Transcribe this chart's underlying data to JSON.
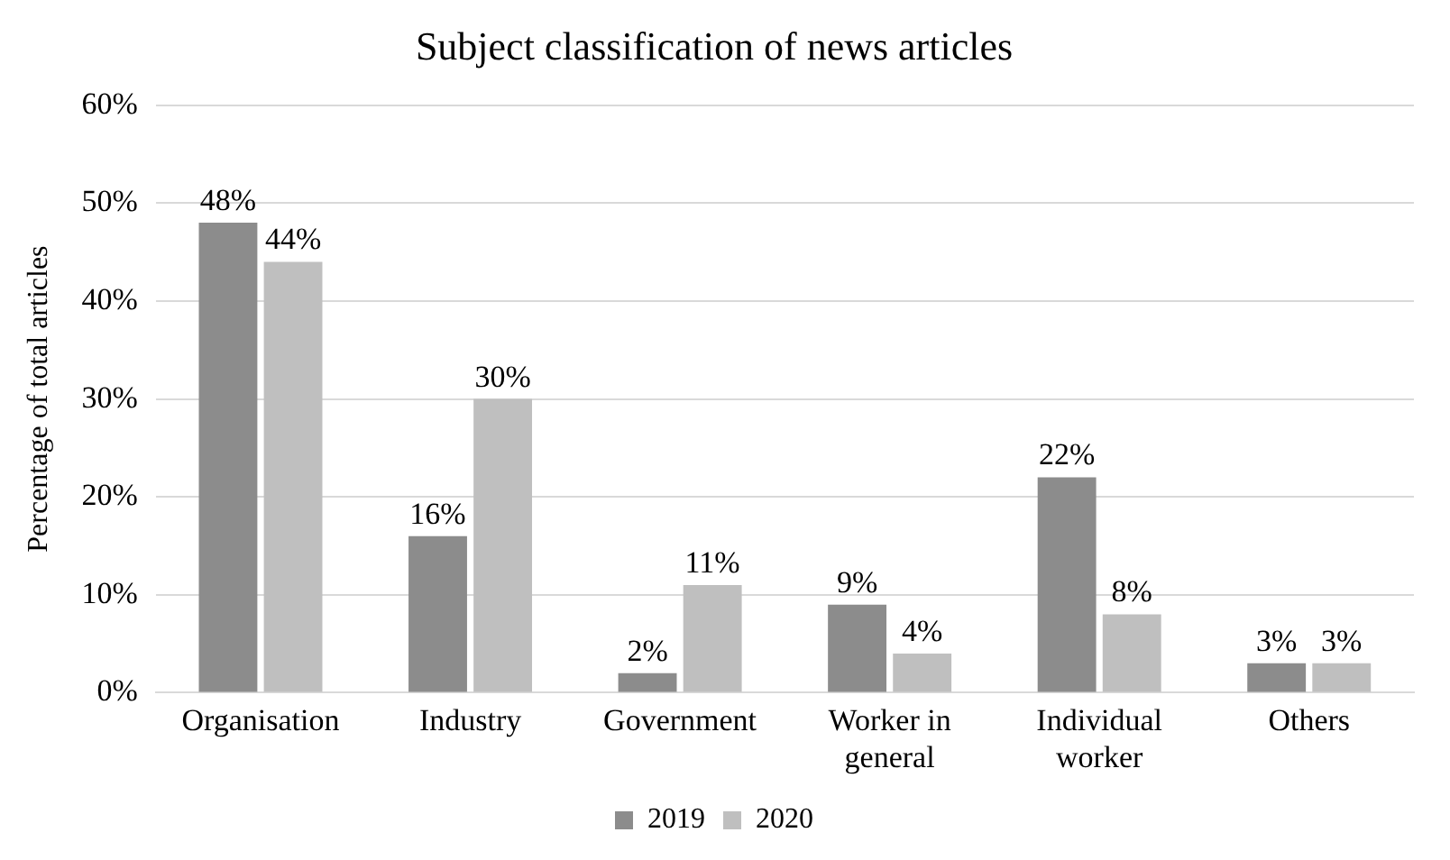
{
  "chart_data": {
    "type": "bar",
    "title": "Subject classification of news articles",
    "ylabel": "Percentage of total articles",
    "categories": [
      "Organisation",
      "Industry",
      "Government",
      "Worker in general",
      "Individual worker",
      "Others"
    ],
    "series": [
      {
        "name": "2019",
        "color": "#8c8c8c",
        "values": [
          48,
          16,
          2,
          9,
          22,
          3
        ],
        "value_labels": [
          "48%",
          "16%",
          "2%",
          "9%",
          "22%",
          "3%"
        ]
      },
      {
        "name": "2020",
        "color": "#bfbfbf",
        "values": [
          44,
          30,
          11,
          4,
          8,
          3
        ],
        "value_labels": [
          "44%",
          "30%",
          "11%",
          "4%",
          "8%",
          "3%"
        ]
      }
    ],
    "ylim": [
      0,
      60
    ],
    "yticks": [
      {
        "value": 0,
        "label": "0%"
      },
      {
        "value": 10,
        "label": "10%"
      },
      {
        "value": 20,
        "label": "20%"
      },
      {
        "value": 30,
        "label": "30%"
      },
      {
        "value": 40,
        "label": "40%"
      },
      {
        "value": 50,
        "label": "50%"
      },
      {
        "value": 60,
        "label": "60%"
      }
    ],
    "grid": "y",
    "legend": "bottom"
  }
}
